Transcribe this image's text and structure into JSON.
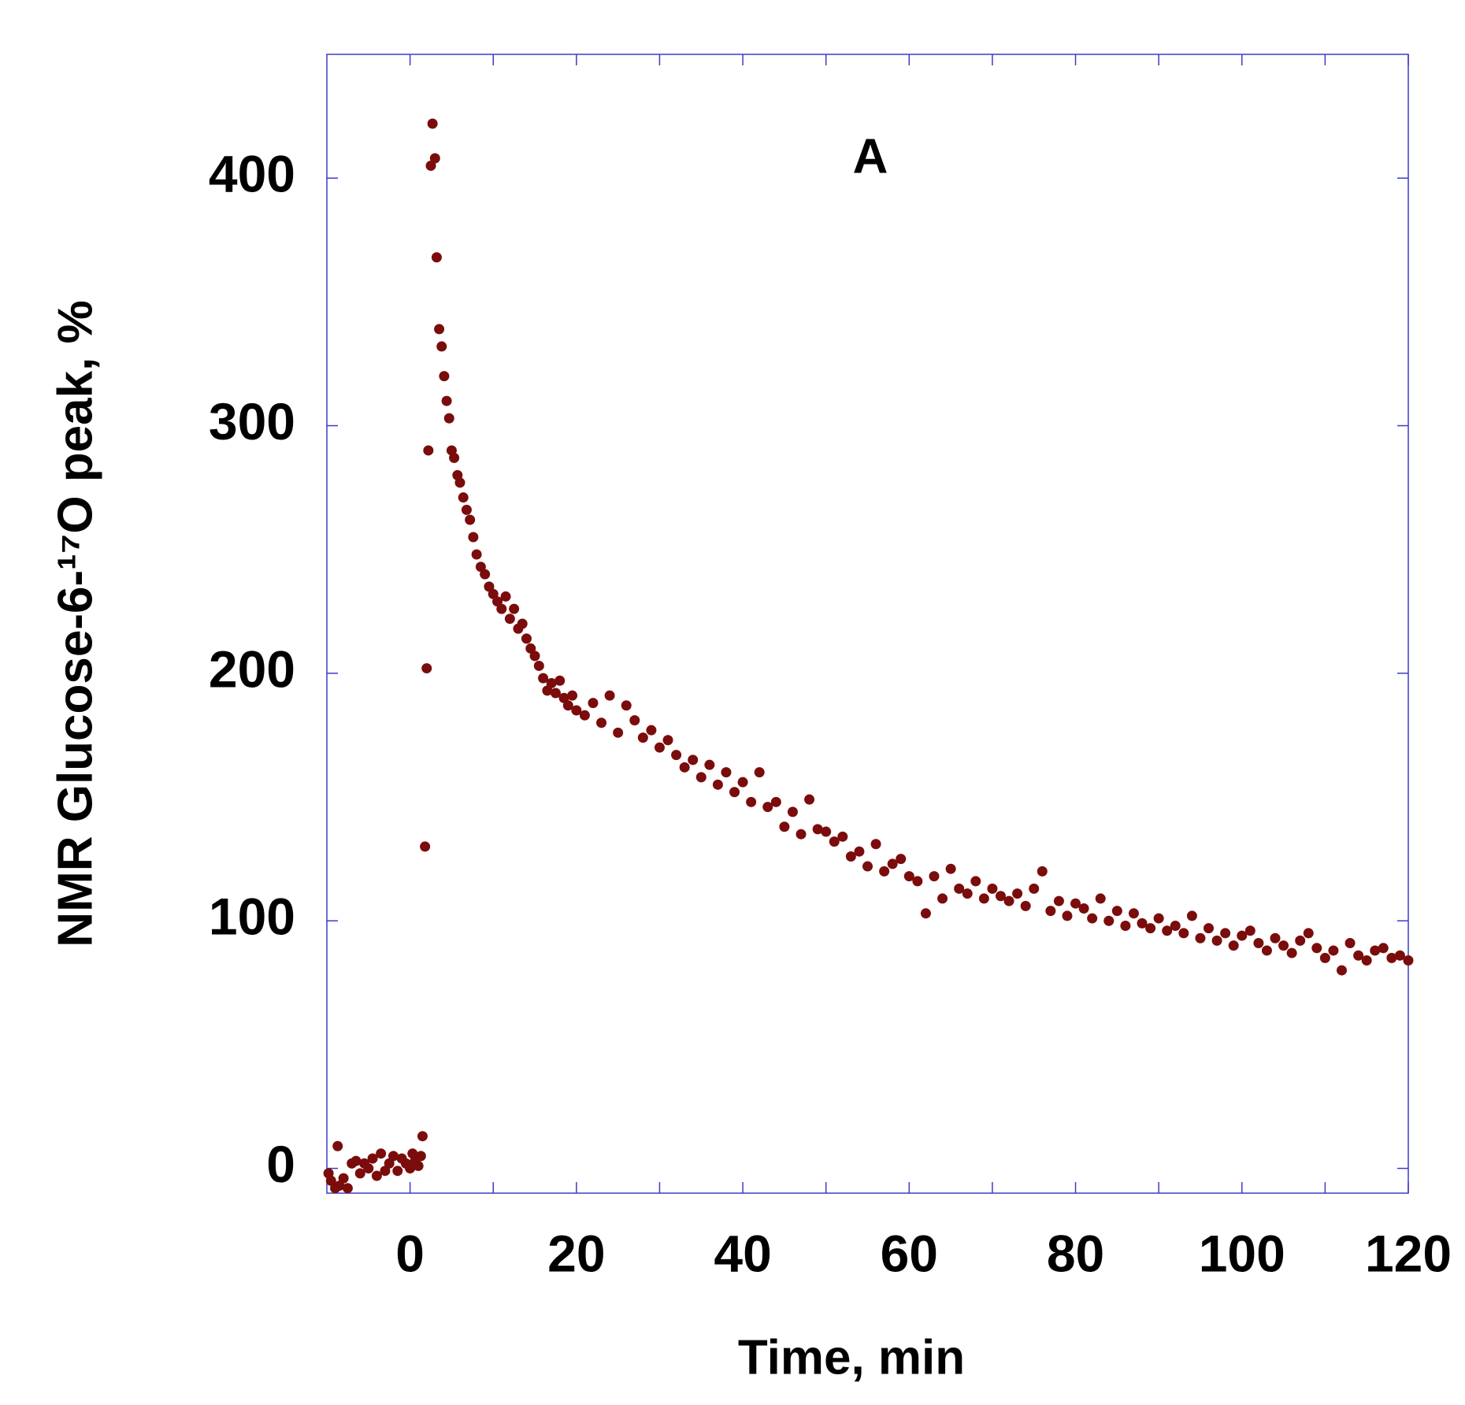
{
  "chart_data": {
    "type": "scatter",
    "title": "A",
    "xlabel": "Time, min",
    "ylabel": "NMR Glucose-6-¹⁷O peak, %",
    "color": "#7b0c0c",
    "axis_color": "#3b3bc8",
    "xlim": [
      -10,
      120
    ],
    "ylim": [
      -10,
      450
    ],
    "xticks": [
      0,
      20,
      40,
      60,
      80,
      100,
      120
    ],
    "xminor_ticks": [
      10,
      30,
      50,
      70,
      90,
      110
    ],
    "yticks": [
      0,
      100,
      200,
      300,
      400
    ],
    "x": [
      -9.8,
      -9.5,
      -9,
      -8.7,
      -8.5,
      -8,
      -7.5,
      -7,
      -6.5,
      -6,
      -5.5,
      -5,
      -4.5,
      -4,
      -3.5,
      -3,
      -2.5,
      -2,
      -1.5,
      -1,
      -0.5,
      0,
      0.3,
      0.6,
      1,
      1.3,
      1.5,
      1.8,
      2,
      2.2,
      2.5,
      2.7,
      3,
      3.2,
      3.5,
      3.8,
      4.1,
      4.4,
      4.7,
      5,
      5.3,
      5.7,
      6,
      6.4,
      6.8,
      7.2,
      7.6,
      8,
      8.5,
      9,
      9.5,
      10,
      10.5,
      11,
      11.5,
      12,
      12.5,
      13,
      13.5,
      14,
      14.5,
      15,
      15.5,
      16,
      16.5,
      17,
      17.5,
      18,
      18.5,
      19,
      19.5,
      20,
      21,
      22,
      23,
      24,
      25,
      26,
      27,
      28,
      29,
      30,
      31,
      32,
      33,
      34,
      35,
      36,
      37,
      38,
      39,
      40,
      41,
      42,
      43,
      44,
      45,
      46,
      47,
      48,
      49,
      50,
      51,
      52,
      53,
      54,
      55,
      56,
      57,
      58,
      59,
      60,
      61,
      62,
      63,
      64,
      65,
      66,
      67,
      68,
      69,
      70,
      71,
      72,
      73,
      74,
      75,
      76,
      77,
      78,
      79,
      80,
      81,
      82,
      83,
      84,
      85,
      86,
      87,
      88,
      89,
      90,
      91,
      92,
      93,
      94,
      95,
      96,
      97,
      98,
      99,
      100,
      101,
      102,
      103,
      104,
      105,
      106,
      107,
      108,
      109,
      110,
      111,
      112,
      113,
      114,
      115,
      116,
      117,
      118,
      119,
      120
    ],
    "values": [
      -2,
      -5,
      -8,
      9,
      -7,
      -4,
      -8,
      2,
      3,
      -2,
      2,
      0,
      4,
      -3,
      6,
      -1,
      2,
      5,
      -1,
      4,
      2,
      0,
      6,
      3,
      1,
      5,
      13,
      130,
      202,
      290,
      405,
      422,
      408,
      368,
      339,
      332,
      320,
      310,
      303,
      290,
      287,
      280,
      277,
      271,
      266,
      262,
      255,
      248,
      243,
      240,
      235,
      232,
      229,
      226,
      231,
      222,
      226,
      218,
      220,
      214,
      210,
      207,
      203,
      198,
      193,
      196,
      192,
      197,
      190,
      187,
      191,
      185,
      183,
      188,
      180,
      191,
      176,
      187,
      181,
      174,
      177,
      170,
      173,
      167,
      162,
      165,
      158,
      163,
      155,
      160,
      152,
      156,
      148,
      160,
      146,
      148,
      138,
      144,
      135,
      149,
      137,
      136,
      132,
      134,
      126,
      128,
      122,
      131,
      120,
      123,
      125,
      118,
      116,
      103,
      118,
      109,
      121,
      113,
      111,
      116,
      109,
      113,
      110,
      108,
      111,
      106,
      113,
      120,
      104,
      108,
      102,
      107,
      105,
      101,
      109,
      100,
      104,
      98,
      103,
      99,
      97,
      101,
      96,
      98,
      95,
      102,
      93,
      97,
      92,
      95,
      90,
      94,
      96,
      91,
      88,
      93,
      90,
      87,
      92,
      95,
      89,
      85,
      88,
      80,
      91,
      86,
      84,
      88,
      89,
      85,
      86,
      84
    ]
  }
}
